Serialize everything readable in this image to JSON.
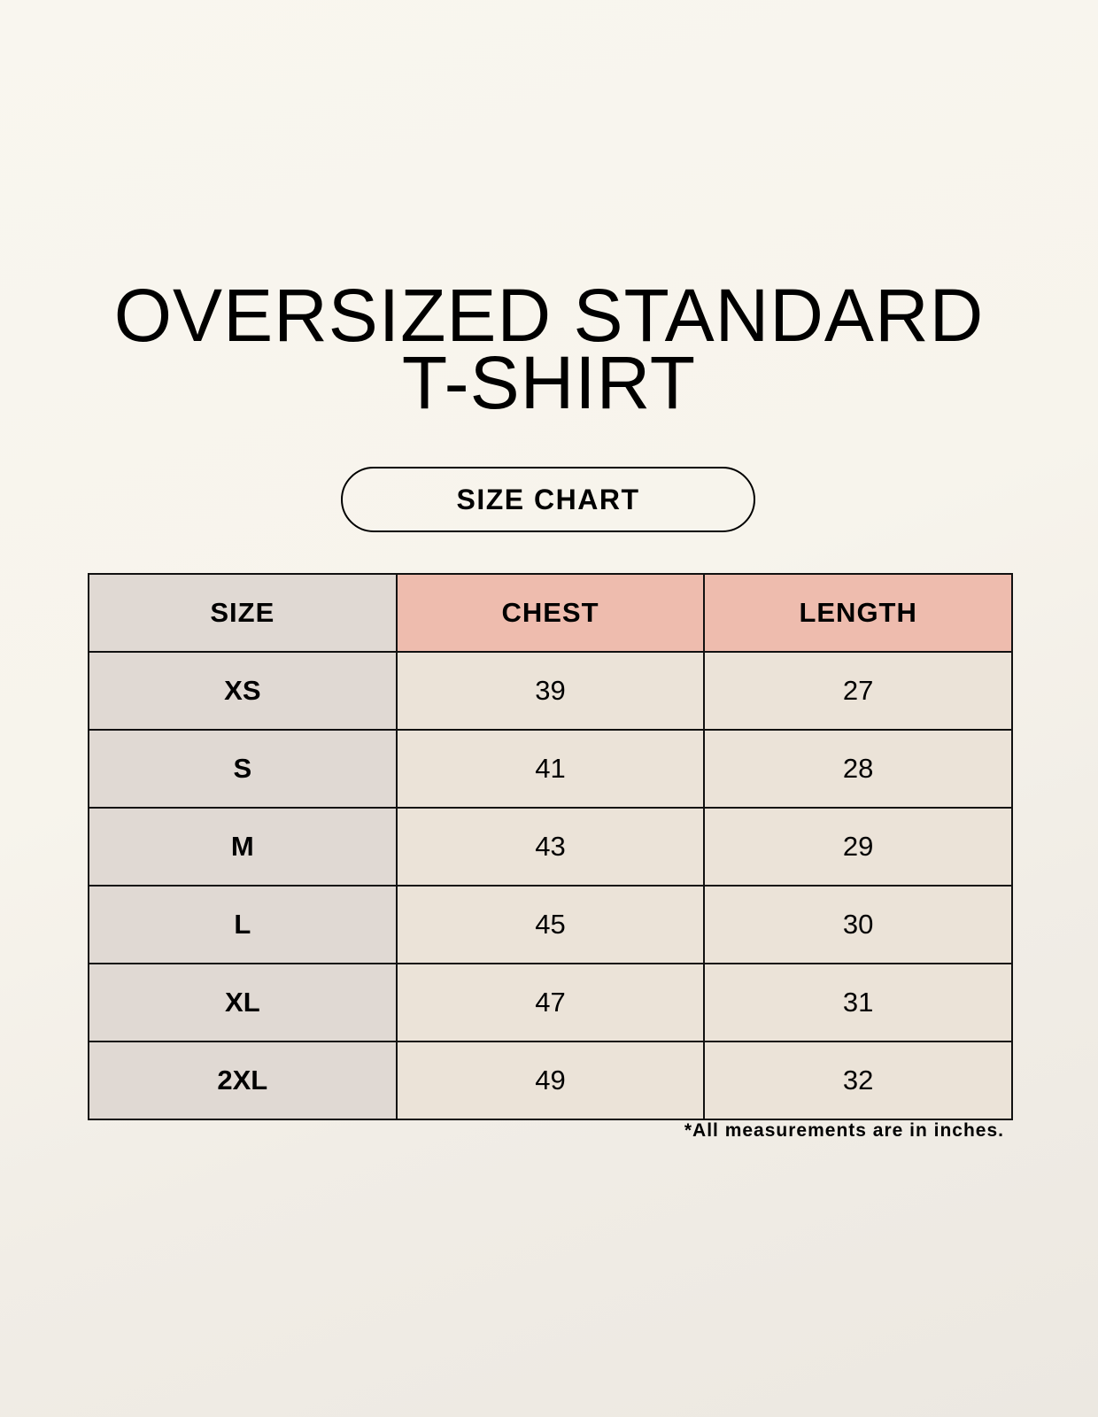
{
  "title_lines": [
    "OVERSIZED STANDARD",
    "T-SHIRT"
  ],
  "badge": "SIZE CHART",
  "table": {
    "headers": [
      "SIZE",
      "CHEST",
      "LENGTH"
    ],
    "rows": [
      [
        "XS",
        "39",
        "27"
      ],
      [
        "S",
        "41",
        "28"
      ],
      [
        "M",
        "43",
        "29"
      ],
      [
        "L",
        "45",
        "30"
      ],
      [
        "XL",
        "47",
        "31"
      ],
      [
        "2XL",
        "49",
        "32"
      ]
    ]
  },
  "note": "*All measurements are in inches.",
  "colors": {
    "size_column": "#e0d9d3",
    "header_accent": "#eebcae",
    "value_cells": "#ebe3d8"
  }
}
